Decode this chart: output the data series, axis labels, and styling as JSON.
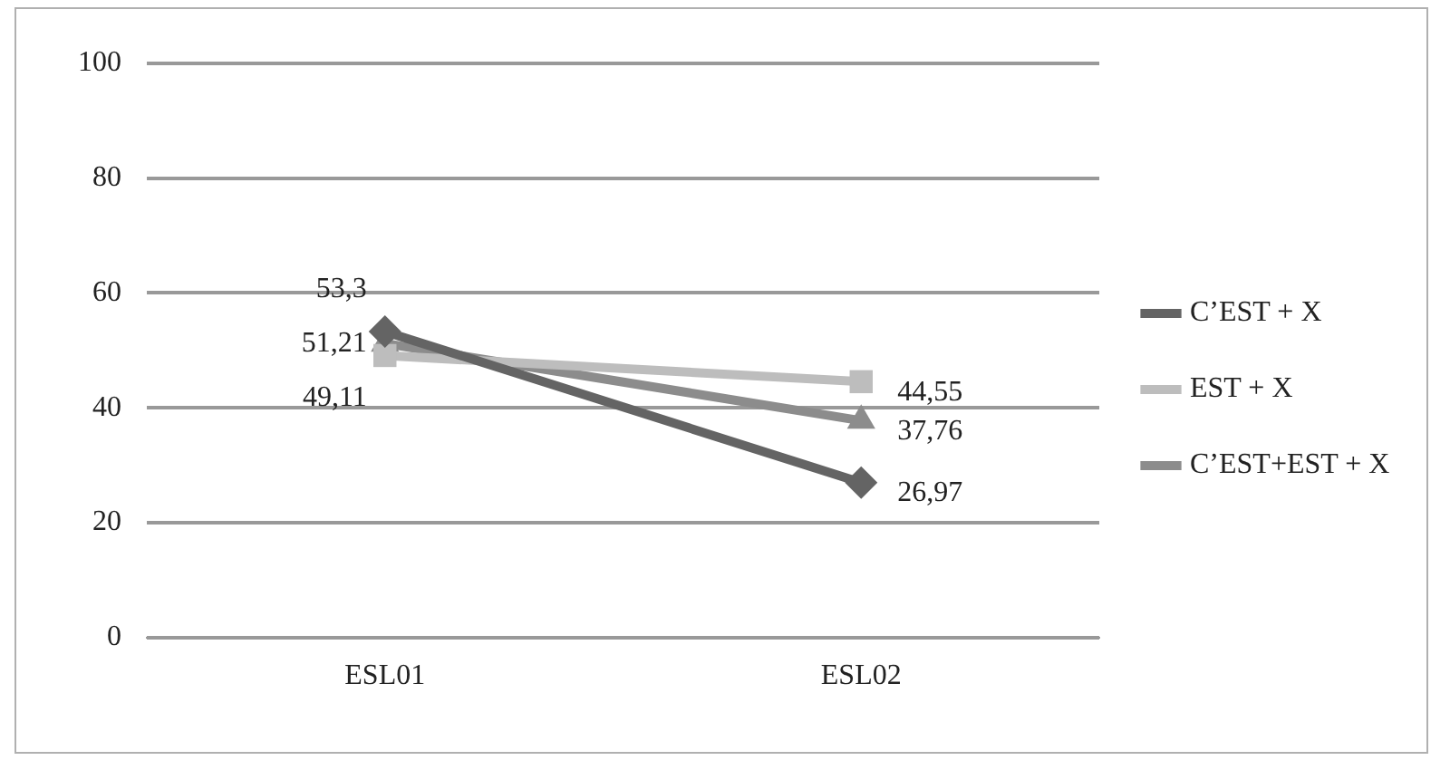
{
  "chart_data": {
    "type": "line",
    "categories": [
      "ESL01",
      "ESL02"
    ],
    "series": [
      {
        "name": "C’EST + X",
        "color": "#646464",
        "marker": "diamond",
        "values": [
          53.3,
          26.97
        ],
        "value_labels": [
          "53,3",
          "26,97"
        ]
      },
      {
        "name": "EST + X",
        "color": "#bdbdbd",
        "marker": "square",
        "values": [
          49.11,
          44.55
        ],
        "value_labels": [
          "49,11",
          "44,55"
        ]
      },
      {
        "name": "C’EST+EST + X",
        "color": "#8c8c8c",
        "marker": "triangle",
        "values": [
          51.21,
          37.76
        ],
        "value_labels": [
          "51,21",
          "37,76"
        ]
      }
    ],
    "ylim": [
      0,
      100
    ],
    "yticks": [
      0,
      20,
      40,
      60,
      80,
      100
    ],
    "grid": "y",
    "legend": "right",
    "line_style": "solid"
  }
}
